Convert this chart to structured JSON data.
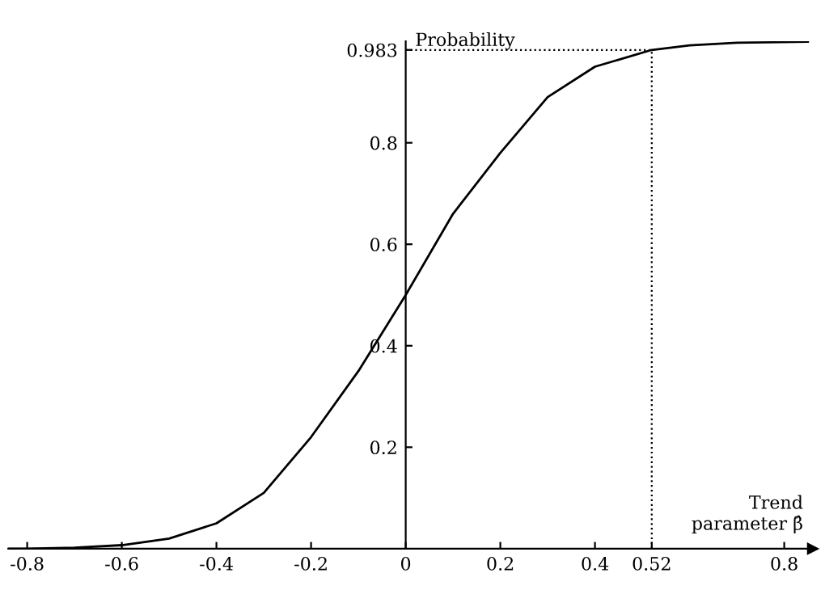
{
  "chart_data": {
    "type": "line",
    "xlabel": "Trend\nparameter β̂",
    "ylabel": "Probability",
    "x": [
      -0.84,
      -0.8,
      -0.7,
      -0.6,
      -0.5,
      -0.4,
      -0.3,
      -0.2,
      -0.1,
      0,
      0.1,
      0.2,
      0.3,
      0.4,
      0.52,
      0.6,
      0.7,
      0.85
    ],
    "series": [
      {
        "color": "#000000",
        "values": [
          0.0,
          0.0,
          0.002,
          0.007,
          0.02,
          0.05,
          0.11,
          0.22,
          0.35,
          0.5,
          0.66,
          0.78,
          0.89,
          0.95,
          0.983,
          0.992,
          0.997,
          0.999
        ]
      }
    ],
    "xlim": [
      -0.84,
      0.86
    ],
    "ylim": [
      0,
      1.0
    ],
    "xticks": [
      -0.8,
      -0.6,
      -0.4,
      -0.2,
      0,
      0.2,
      0.4,
      0.52,
      0.8
    ],
    "yticks": [
      0.2,
      0.4,
      0.6,
      0.8,
      0.983
    ],
    "ref_lines": [
      {
        "axis": "y",
        "value": 0.983,
        "line_style": "dotted",
        "color": "#000000"
      },
      {
        "axis": "x",
        "value": 0.52,
        "line_style": "dotted",
        "color": "#000000"
      }
    ],
    "grid": false,
    "marker": "none",
    "line_style": "solid"
  }
}
